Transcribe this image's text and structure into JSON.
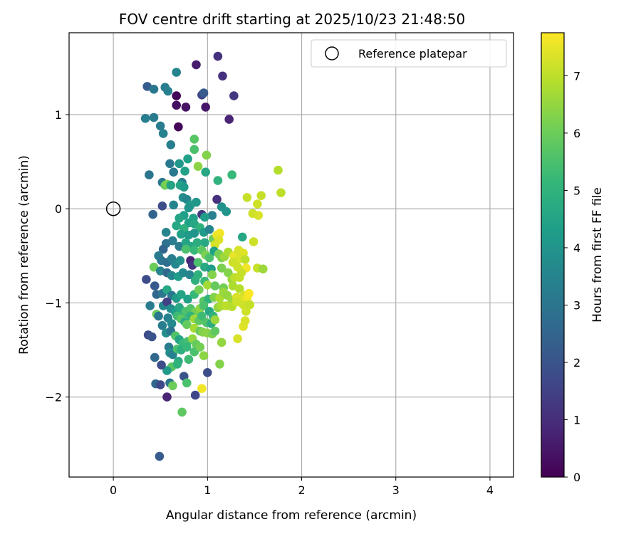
{
  "chart_data": {
    "type": "scatter",
    "title": "FOV centre drift starting at 2025/10/23 21:48:50",
    "xlabel": "Angular distance from reference (arcmin)",
    "ylabel": "Rotation from reference (arcmin)",
    "xlim": [
      -0.47,
      4.25
    ],
    "ylim": [
      -2.85,
      1.87
    ],
    "xticks": [
      0,
      1,
      2,
      3,
      4
    ],
    "yticks": [
      -2,
      -1,
      0,
      1
    ],
    "grid": true,
    "legend": {
      "placement": "top-right",
      "entries": [
        "Reference platepar"
      ]
    },
    "colorbar": {
      "label": "Hours from first FF file",
      "range": [
        0,
        7.75
      ],
      "ticks": [
        0,
        1,
        2,
        3,
        4,
        5,
        6,
        7
      ],
      "colormap": "viridis"
    },
    "reference_point": {
      "x": 0,
      "y": 0
    },
    "points": [
      [
        0.36,
        1.3,
        2.2
      ],
      [
        0.43,
        1.27,
        3.1
      ],
      [
        0.55,
        1.29,
        3.3
      ],
      [
        0.58,
        1.25,
        3.4
      ],
      [
        0.67,
        1.2,
        0.1
      ],
      [
        0.67,
        1.45,
        3.5
      ],
      [
        0.67,
        1.1,
        0.3
      ],
      [
        0.88,
        1.53,
        0.6
      ],
      [
        0.94,
        1.21,
        1.6
      ],
      [
        0.96,
        1.23,
        2.2
      ],
      [
        0.98,
        1.08,
        0.5
      ],
      [
        0.77,
        1.08,
        0.4
      ],
      [
        1.11,
        1.62,
        1.1
      ],
      [
        1.16,
        1.41,
        1.1
      ],
      [
        1.28,
        1.2,
        1.3
      ],
      [
        1.23,
        0.95,
        0.8
      ],
      [
        0.34,
        0.96,
        3.3
      ],
      [
        0.43,
        0.97,
        3.2
      ],
      [
        0.5,
        0.88,
        3.2
      ],
      [
        0.53,
        0.8,
        3.4
      ],
      [
        0.69,
        0.87,
        0.1
      ],
      [
        0.61,
        0.68,
        3.3
      ],
      [
        0.86,
        0.74,
        5.7
      ],
      [
        0.86,
        0.63,
        5.5
      ],
      [
        0.99,
        0.57,
        6.3
      ],
      [
        0.38,
        0.36,
        3.0
      ],
      [
        0.52,
        0.28,
        3.1
      ],
      [
        0.6,
        0.48,
        3.1
      ],
      [
        0.64,
        0.39,
        3.1
      ],
      [
        0.7,
        0.48,
        4.1
      ],
      [
        0.73,
        0.28,
        3.3
      ],
      [
        0.76,
        0.4,
        4.4
      ],
      [
        0.79,
        0.53,
        4.4
      ],
      [
        0.9,
        0.45,
        6.4
      ],
      [
        0.98,
        0.39,
        4.6
      ],
      [
        1.11,
        0.3,
        5.0
      ],
      [
        1.26,
        0.36,
        5.2
      ],
      [
        0.55,
        0.25,
        5.9
      ],
      [
        0.57,
        0.26,
        6.2
      ],
      [
        0.61,
        0.25,
        4.5
      ],
      [
        0.71,
        0.25,
        4.5
      ],
      [
        0.75,
        0.23,
        4.2
      ],
      [
        1.75,
        0.41,
        6.9
      ],
      [
        1.78,
        0.17,
        7.0
      ],
      [
        1.42,
        0.12,
        7.1
      ],
      [
        1.53,
        0.05,
        7.2
      ],
      [
        1.57,
        0.14,
        7.1
      ],
      [
        1.48,
        -0.05,
        7.2
      ],
      [
        1.54,
        -0.07,
        7.3
      ],
      [
        1.49,
        -0.35,
        7.2
      ],
      [
        1.53,
        -0.63,
        7.1
      ],
      [
        1.59,
        -0.64,
        6.6
      ],
      [
        0.42,
        -0.06,
        2.5
      ],
      [
        0.52,
        0.03,
        1.8
      ],
      [
        0.64,
        0.04,
        3.5
      ],
      [
        0.74,
        0.12,
        3.8
      ],
      [
        0.78,
        0.1,
        3.6
      ],
      [
        0.82,
        0.04,
        4.2
      ],
      [
        0.88,
        0.07,
        4.1
      ],
      [
        0.75,
        -0.07,
        4.3
      ],
      [
        0.8,
        0.01,
        4.0
      ],
      [
        0.94,
        -0.06,
        1.3
      ],
      [
        1.1,
        0.1,
        1.1
      ],
      [
        1.15,
        0.02,
        3.9
      ],
      [
        1.2,
        -0.03,
        4.0
      ],
      [
        1.05,
        -0.07,
        3.4
      ],
      [
        0.97,
        -0.09,
        4.3
      ],
      [
        0.85,
        -0.1,
        4.4
      ],
      [
        0.7,
        -0.1,
        4.5
      ],
      [
        0.67,
        -0.18,
        4.6
      ],
      [
        0.8,
        -0.15,
        4.4
      ],
      [
        0.86,
        -0.16,
        4.6
      ],
      [
        0.92,
        -0.2,
        5.0
      ],
      [
        0.75,
        -0.21,
        4.9
      ],
      [
        0.72,
        -0.27,
        4.4
      ],
      [
        0.8,
        -0.28,
        4.2
      ],
      [
        0.86,
        -0.26,
        4.0
      ],
      [
        0.96,
        -0.25,
        4.2
      ],
      [
        1.02,
        -0.22,
        3.5
      ],
      [
        0.97,
        -0.36,
        4.6
      ],
      [
        1.06,
        -0.32,
        6.0
      ],
      [
        1.1,
        -0.28,
        7.5
      ],
      [
        1.13,
        -0.26,
        7.6
      ],
      [
        1.12,
        -0.33,
        7.4
      ],
      [
        1.08,
        -0.38,
        7.3
      ],
      [
        0.56,
        -0.25,
        3.5
      ],
      [
        0.63,
        -0.34,
        3.3
      ],
      [
        0.7,
        -0.4,
        3.2
      ],
      [
        0.77,
        -0.36,
        4.5
      ],
      [
        0.82,
        -0.4,
        4.6
      ],
      [
        0.89,
        -0.36,
        4.8
      ],
      [
        0.77,
        -0.43,
        5.5
      ],
      [
        0.86,
        -0.44,
        5.2
      ],
      [
        0.94,
        -0.44,
        5.8
      ],
      [
        0.98,
        -0.49,
        6.2
      ],
      [
        1.02,
        -0.52,
        5.5
      ],
      [
        1.07,
        -0.45,
        4.4
      ],
      [
        1.12,
        -0.48,
        6.1
      ],
      [
        1.15,
        -0.52,
        6.2
      ],
      [
        1.18,
        -0.51,
        6.6
      ],
      [
        1.22,
        -0.46,
        6.8
      ],
      [
        1.28,
        -0.5,
        7.5
      ],
      [
        1.33,
        -0.44,
        7.3
      ],
      [
        1.38,
        -0.47,
        7.4
      ],
      [
        1.34,
        -0.53,
        7.3
      ],
      [
        1.27,
        -0.57,
        7.2
      ],
      [
        1.4,
        -0.54,
        7.0
      ],
      [
        1.41,
        -0.63,
        7.6
      ],
      [
        1.36,
        -0.68,
        7.1
      ],
      [
        1.32,
        -0.62,
        7.2
      ],
      [
        1.37,
        -0.3,
        4.6
      ],
      [
        0.56,
        -0.37,
        2.9
      ],
      [
        0.53,
        -0.43,
        2.5
      ],
      [
        0.48,
        -0.5,
        3.2
      ],
      [
        0.51,
        -0.55,
        3.0
      ],
      [
        0.57,
        -0.57,
        2.8
      ],
      [
        0.62,
        -0.53,
        3.3
      ],
      [
        0.66,
        -0.59,
        3.6
      ],
      [
        0.71,
        -0.55,
        3.8
      ],
      [
        0.82,
        -0.55,
        0.8
      ],
      [
        0.84,
        -0.6,
        1.2
      ],
      [
        0.9,
        -0.57,
        5.5
      ],
      [
        0.97,
        -0.62,
        4.7
      ],
      [
        1.04,
        -0.64,
        4.3
      ],
      [
        1.05,
        -0.7,
        6.3
      ],
      [
        1.15,
        -0.63,
        6.2
      ],
      [
        1.22,
        -0.68,
        6.3
      ],
      [
        1.26,
        -0.75,
        6.6
      ],
      [
        1.29,
        -0.73,
        7.0
      ],
      [
        1.34,
        -0.73,
        7.1
      ],
      [
        0.43,
        -0.62,
        6.0
      ],
      [
        0.5,
        -0.66,
        3.6
      ],
      [
        0.57,
        -0.68,
        2.6
      ],
      [
        0.62,
        -0.71,
        3.6
      ],
      [
        0.69,
        -0.72,
        4.3
      ],
      [
        0.74,
        -0.68,
        3.7
      ],
      [
        0.81,
        -0.7,
        3.5
      ],
      [
        0.87,
        -0.76,
        4.9
      ],
      [
        0.9,
        -0.7,
        5.0
      ],
      [
        0.97,
        -0.77,
        5.2
      ],
      [
        1.0,
        -0.81,
        6.7
      ],
      [
        1.08,
        -0.82,
        5.9
      ],
      [
        1.17,
        -0.84,
        6.1
      ],
      [
        1.27,
        -0.82,
        6.8
      ],
      [
        1.34,
        -0.85,
        6.9
      ],
      [
        0.35,
        -0.75,
        1.8
      ],
      [
        0.44,
        -0.82,
        2.2
      ],
      [
        0.46,
        -0.91,
        2.6
      ],
      [
        0.52,
        -0.9,
        3.0
      ],
      [
        0.57,
        -0.86,
        4.6
      ],
      [
        0.62,
        -0.92,
        3.1
      ],
      [
        0.67,
        -0.95,
        4.2
      ],
      [
        0.72,
        -0.91,
        4.5
      ],
      [
        0.79,
        -0.96,
        4.4
      ],
      [
        0.86,
        -0.91,
        5.2
      ],
      [
        0.91,
        -0.86,
        6.1
      ],
      [
        0.96,
        -0.98,
        5.7
      ],
      [
        1.01,
        -0.96,
        5.0
      ],
      [
        1.07,
        -0.94,
        6.3
      ],
      [
        1.13,
        -0.95,
        6.8
      ],
      [
        1.17,
        -0.89,
        6.6
      ],
      [
        1.21,
        -0.92,
        6.5
      ],
      [
        1.26,
        -0.97,
        6.6
      ],
      [
        1.31,
        -0.94,
        7.3
      ],
      [
        1.35,
        -0.96,
        7.4
      ],
      [
        1.39,
        -0.92,
        7.3
      ],
      [
        1.42,
        -0.95,
        7.6
      ],
      [
        1.44,
        -0.9,
        7.7
      ],
      [
        0.39,
        -1.03,
        3.2
      ],
      [
        0.46,
        -1.12,
        6.0
      ],
      [
        0.53,
        -1.03,
        3.6
      ],
      [
        0.57,
        -0.99,
        1.5
      ],
      [
        0.61,
        -1.06,
        3.8
      ],
      [
        0.66,
        -1.1,
        4.3
      ],
      [
        0.7,
        -1.05,
        4.6
      ],
      [
        0.74,
        -1.11,
        4.8
      ],
      [
        0.77,
        -1.09,
        5.5
      ],
      [
        0.82,
        -1.06,
        5.6
      ],
      [
        0.87,
        -1.1,
        6.1
      ],
      [
        0.92,
        -1.06,
        6.4
      ],
      [
        0.96,
        -1.03,
        5.5
      ],
      [
        1.02,
        -1.09,
        4.6
      ],
      [
        1.06,
        -1.14,
        5.0
      ],
      [
        1.11,
        -1.05,
        6.5
      ],
      [
        1.15,
        -1.03,
        6.8
      ],
      [
        1.2,
        -1.03,
        7.0
      ],
      [
        1.26,
        -1.04,
        6.9
      ],
      [
        1.31,
        -0.99,
        7.2
      ],
      [
        1.38,
        -1.02,
        7.2
      ],
      [
        1.41,
        -1.09,
        7.2
      ],
      [
        1.45,
        -1.02,
        7.1
      ],
      [
        0.37,
        -1.34,
        1.8
      ],
      [
        0.48,
        -1.14,
        3.1
      ],
      [
        0.52,
        -1.24,
        3.3
      ],
      [
        0.58,
        -1.16,
        3.4
      ],
      [
        0.62,
        -1.22,
        3.7
      ],
      [
        0.68,
        -1.14,
        5.3
      ],
      [
        0.72,
        -1.17,
        5.8
      ],
      [
        0.76,
        -1.2,
        4.8
      ],
      [
        0.82,
        -1.14,
        5.0
      ],
      [
        0.86,
        -1.17,
        6.6
      ],
      [
        0.91,
        -1.19,
        5.8
      ],
      [
        0.94,
        -1.14,
        5.3
      ],
      [
        0.99,
        -1.21,
        5.6
      ],
      [
        1.04,
        -1.22,
        4.8
      ],
      [
        1.08,
        -1.18,
        6.6
      ],
      [
        0.78,
        -1.23,
        5.9
      ],
      [
        0.86,
        -1.27,
        6.7
      ],
      [
        0.92,
        -1.3,
        5.9
      ],
      [
        0.41,
        -1.36,
        2.0
      ],
      [
        0.56,
        -1.32,
        3.8
      ],
      [
        0.61,
        -1.3,
        3.0
      ],
      [
        0.66,
        -1.35,
        5.6
      ],
      [
        0.7,
        -1.39,
        4.5
      ],
      [
        0.74,
        -1.43,
        5.2
      ],
      [
        0.79,
        -1.41,
        5.4
      ],
      [
        0.84,
        -1.38,
        6.5
      ],
      [
        0.88,
        -1.44,
        5.9
      ],
      [
        0.95,
        -1.31,
        6.3
      ],
      [
        1.0,
        -1.32,
        6.4
      ],
      [
        1.05,
        -1.33,
        6.2
      ],
      [
        1.08,
        -1.3,
        5.8
      ],
      [
        1.38,
        -1.25,
        7.4
      ],
      [
        1.4,
        -1.19,
        7.3
      ],
      [
        1.32,
        -1.38,
        7.3
      ],
      [
        1.15,
        -1.42,
        6.5
      ],
      [
        0.59,
        -1.47,
        3.2
      ],
      [
        0.6,
        -1.53,
        3.8
      ],
      [
        0.63,
        -1.55,
        3.4
      ],
      [
        0.68,
        -1.49,
        5.5
      ],
      [
        0.72,
        -1.5,
        4.9
      ],
      [
        0.78,
        -1.47,
        5.2
      ],
      [
        0.86,
        -1.52,
        5.5
      ],
      [
        0.92,
        -1.47,
        6.1
      ],
      [
        0.96,
        -1.56,
        6.4
      ],
      [
        0.8,
        -1.6,
        5.3
      ],
      [
        0.69,
        -1.62,
        4.6
      ],
      [
        0.62,
        -1.68,
        5.7
      ],
      [
        0.68,
        -1.65,
        5.0
      ],
      [
        0.57,
        -1.72,
        4.2
      ],
      [
        0.75,
        -1.78,
        2.0
      ],
      [
        0.51,
        -1.66,
        1.8
      ],
      [
        0.44,
        -1.58,
        2.6
      ],
      [
        1.0,
        -1.74,
        1.8
      ],
      [
        1.13,
        -1.65,
        6.3
      ],
      [
        0.45,
        -1.86,
        2.6
      ],
      [
        0.5,
        -1.87,
        1.7
      ],
      [
        0.6,
        -1.85,
        3.0
      ],
      [
        0.63,
        -1.88,
        6.0
      ],
      [
        0.78,
        -1.85,
        5.5
      ],
      [
        0.87,
        -1.98,
        1.6
      ],
      [
        0.94,
        -1.91,
        7.6
      ],
      [
        0.57,
        -2.0,
        0.8
      ],
      [
        0.73,
        -2.16,
        5.8
      ],
      [
        0.49,
        -2.63,
        2.2
      ]
    ]
  }
}
